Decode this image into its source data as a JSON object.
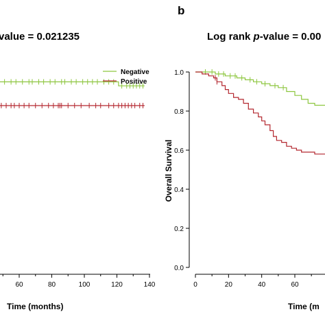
{
  "panel_b_label": "b",
  "chart_data": [
    {
      "type": "line",
      "title_prefix": "",
      "title_suffix": "value = 0.021235",
      "xlabel": "Time (months)",
      "ylabel": "",
      "xticks": [
        "60",
        "80",
        "100",
        "120",
        "140"
      ],
      "xtick_values": [
        60,
        80,
        100,
        120,
        140
      ],
      "xlim": [
        42,
        140
      ],
      "ylim": [
        0,
        1.0
      ],
      "legend_position": "top-right",
      "legend": [
        "Negative",
        "Positive"
      ],
      "series": [
        {
          "name": "Negative",
          "color": "#8dc63f",
          "points": [
            [
              42,
              0.95
            ],
            [
              60,
              0.95
            ],
            [
              120,
              0.95
            ],
            [
              121,
              0.93
            ],
            [
              137,
              0.93
            ]
          ],
          "censor_x": [
            45,
            48,
            51,
            55,
            58,
            62,
            66,
            68,
            72,
            75,
            79,
            82,
            86,
            88,
            92,
            95,
            99,
            102,
            105,
            108,
            112,
            115,
            118,
            123,
            126,
            128,
            130,
            132,
            134,
            136
          ]
        },
        {
          "name": "Positive",
          "color": "#b3262e",
          "points": [
            [
              42,
              0.85
            ],
            [
              43,
              0.85
            ],
            [
              44,
              0.83
            ],
            [
              137,
              0.83
            ]
          ],
          "censor_x": [
            46,
            49,
            52,
            55,
            57,
            60,
            63,
            66,
            70,
            74,
            78,
            81,
            84,
            85,
            86,
            90,
            94,
            98,
            103,
            107,
            110,
            115,
            118,
            121,
            123,
            125,
            127,
            129,
            131,
            134,
            136
          ]
        }
      ]
    },
    {
      "type": "line",
      "title_prefix": "Log rank ",
      "title_p": "p",
      "title_suffix": "-value = 0.00",
      "xlabel": "Time (m",
      "ylabel": "Overall Survival",
      "yticks": [
        "0.0",
        "0.2",
        "0.4",
        "0.6",
        "0.8",
        "1.0"
      ],
      "ytick_values": [
        0,
        0.2,
        0.4,
        0.6,
        0.8,
        1.0
      ],
      "xticks": [
        "0",
        "20",
        "40",
        "60"
      ],
      "xtick_values": [
        0,
        20,
        40,
        60
      ],
      "xlim": [
        0,
        85
      ],
      "ylim": [
        0,
        1.0
      ],
      "series": [
        {
          "name": "Negative",
          "color": "#8dc63f",
          "points": [
            [
              0,
              1.0
            ],
            [
              10,
              1.0
            ],
            [
              12,
              0.99
            ],
            [
              18,
              0.98
            ],
            [
              25,
              0.97
            ],
            [
              30,
              0.96
            ],
            [
              35,
              0.95
            ],
            [
              40,
              0.94
            ],
            [
              45,
              0.93
            ],
            [
              50,
              0.92
            ],
            [
              55,
              0.9
            ],
            [
              60,
              0.88
            ],
            [
              64,
              0.86
            ],
            [
              68,
              0.84
            ],
            [
              72,
              0.83
            ],
            [
              85,
              0.83
            ]
          ],
          "censor_x": [
            6,
            10,
            14,
            17,
            21,
            24,
            28,
            33,
            37,
            42,
            48,
            53
          ]
        },
        {
          "name": "Positive",
          "color": "#b3262e",
          "points": [
            [
              0,
              1.0
            ],
            [
              4,
              0.99
            ],
            [
              8,
              0.98
            ],
            [
              11,
              0.97
            ],
            [
              13,
              0.95
            ],
            [
              16,
              0.93
            ],
            [
              18,
              0.91
            ],
            [
              20,
              0.89
            ],
            [
              23,
              0.87
            ],
            [
              26,
              0.86
            ],
            [
              29,
              0.84
            ],
            [
              32,
              0.81
            ],
            [
              35,
              0.79
            ],
            [
              38,
              0.77
            ],
            [
              40,
              0.75
            ],
            [
              42,
              0.73
            ],
            [
              45,
              0.7
            ],
            [
              47,
              0.67
            ],
            [
              49,
              0.65
            ],
            [
              52,
              0.64
            ],
            [
              55,
              0.62
            ],
            [
              58,
              0.61
            ],
            [
              61,
              0.6
            ],
            [
              64,
              0.59
            ],
            [
              68,
              0.59
            ],
            [
              71,
              0.59
            ],
            [
              72,
              0.58
            ],
            [
              85,
              0.58
            ]
          ],
          "censor_x": [
            12,
            13
          ]
        }
      ]
    }
  ]
}
